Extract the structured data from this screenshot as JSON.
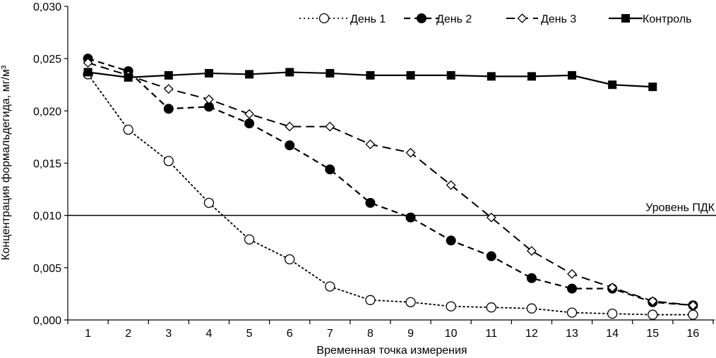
{
  "chart_data": {
    "type": "line",
    "title": "",
    "xlabel": "Временная точка измерения",
    "ylabel": "Концентрация формальдегида, мг/м³",
    "ylim": [
      0,
      0.03
    ],
    "yticks": [
      0,
      0.005,
      0.01,
      0.015,
      0.02,
      0.025,
      0.03
    ],
    "ytick_labels": [
      "0,000",
      "0,005",
      "0,010",
      "0,015",
      "0,020",
      "0,025",
      "0,030"
    ],
    "categories": [
      "1",
      "2",
      "3",
      "4",
      "5",
      "6",
      "7",
      "8",
      "9",
      "10",
      "11",
      "12",
      "13",
      "14",
      "15",
      "16"
    ],
    "grid": false,
    "legend_position": "top-right",
    "reference_line": {
      "value": 0.01,
      "label": "Уровень ПДК"
    },
    "series": [
      {
        "name": "День 1",
        "style": "dotted",
        "marker": "open-circle",
        "values": [
          0.0235,
          0.0182,
          0.0152,
          0.0112,
          0.0077,
          0.0058,
          0.0032,
          0.0019,
          0.0017,
          0.0013,
          0.0012,
          0.0011,
          0.0007,
          0.0006,
          0.0005,
          0.0005
        ]
      },
      {
        "name": "День 2",
        "style": "dashed",
        "marker": "filled-circle",
        "values": [
          0.025,
          0.0238,
          0.0202,
          0.0204,
          0.0188,
          0.0167,
          0.0144,
          0.0112,
          0.0098,
          0.0076,
          0.0061,
          0.004,
          0.003,
          0.003,
          0.0017,
          0.0014
        ]
      },
      {
        "name": "День 3",
        "style": "long-dashed",
        "marker": "open-diamond",
        "values": [
          0.0246,
          0.0234,
          0.0221,
          0.0211,
          0.0197,
          0.0185,
          0.0185,
          0.0168,
          0.016,
          0.0129,
          0.0098,
          0.0066,
          0.0044,
          0.0031,
          0.0018,
          0.0014
        ]
      },
      {
        "name": "Контроль",
        "style": "solid",
        "marker": "filled-square",
        "values": [
          0.0237,
          0.0232,
          0.0234,
          0.0236,
          0.0235,
          0.0237,
          0.0236,
          0.0234,
          0.0234,
          0.0234,
          0.0233,
          0.0233,
          0.0234,
          0.0225,
          0.0223,
          null
        ]
      }
    ]
  }
}
